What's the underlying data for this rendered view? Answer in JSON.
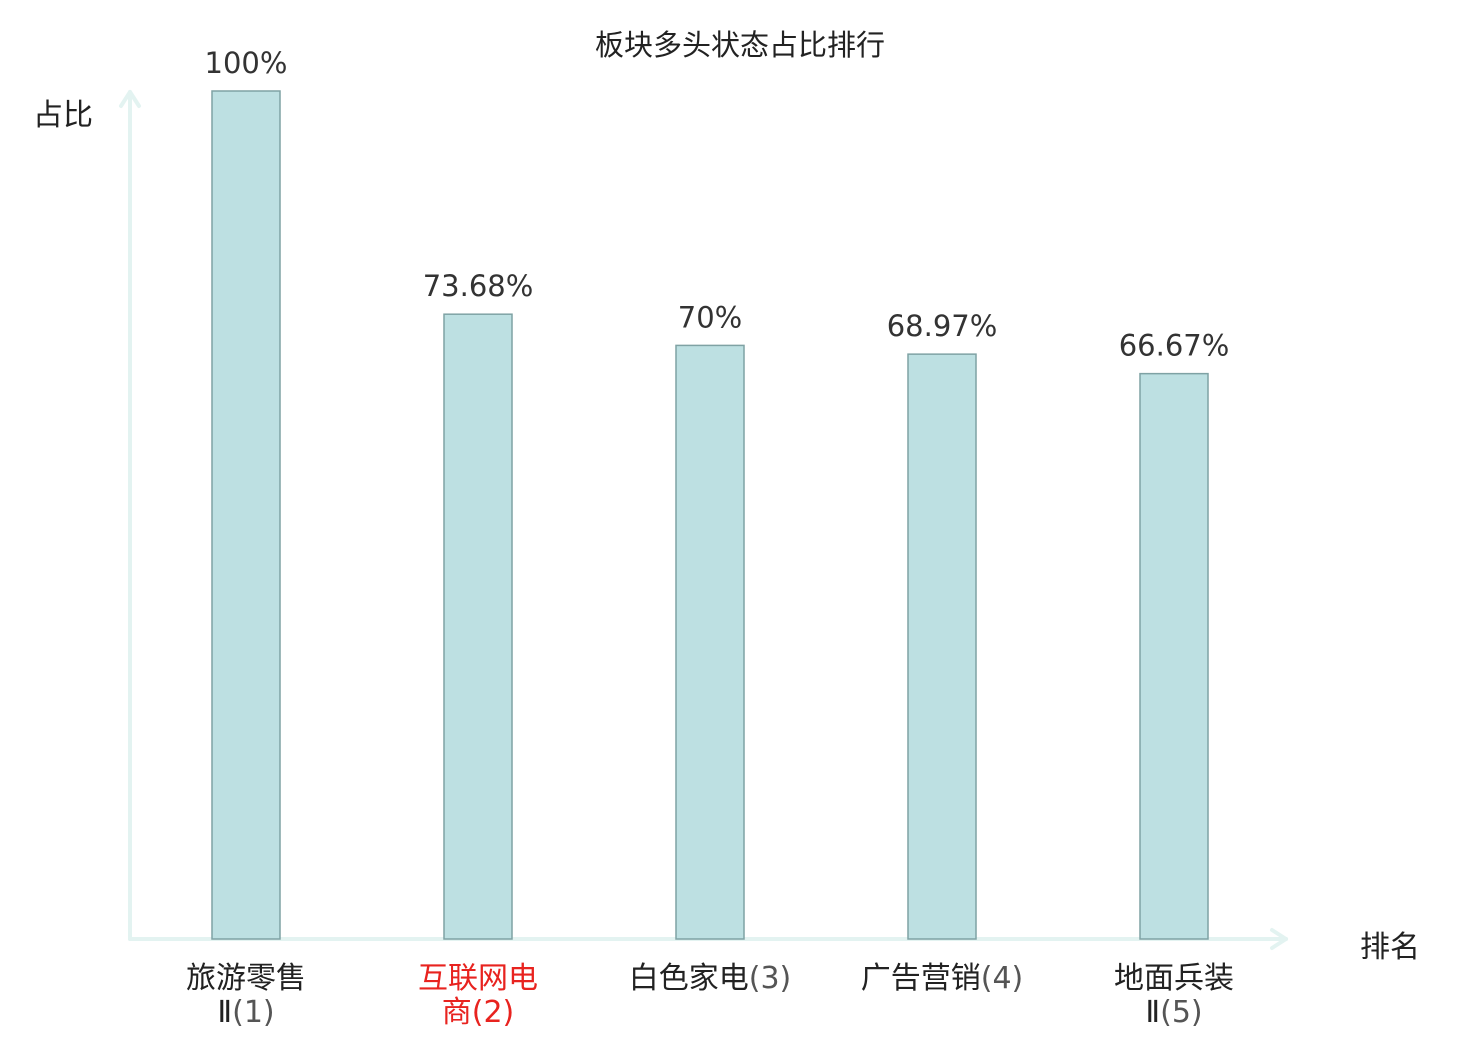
{
  "chart_data": {
    "type": "bar",
    "title": "板块多头状态占比排行",
    "ylabel": "占比",
    "xlabel": "排名",
    "ylim": [
      0,
      100
    ],
    "categories": [
      {
        "name": "旅游零售",
        "line2": "Ⅱ",
        "rank": "(1)",
        "highlight": false
      },
      {
        "name": "互联网电",
        "line2": "商",
        "rank": "(2)",
        "highlight": true
      },
      {
        "name": "白色家电",
        "line2": "",
        "rank": "(3)",
        "highlight": false
      },
      {
        "name": "广告营销",
        "line2": "",
        "rank": "(4)",
        "highlight": false
      },
      {
        "name": "地面兵装",
        "line2": "Ⅱ",
        "rank": "(5)",
        "highlight": false
      }
    ],
    "values": [
      100,
      73.68,
      70,
      68.97,
      66.67
    ],
    "value_labels": [
      "100%",
      "73.68%",
      "70%",
      "68.97%",
      "66.67%"
    ],
    "grid": false,
    "colors": {
      "bar_fill": "#bde0e2",
      "bar_stroke": "#7fa2a4",
      "axis": "#e3f3f1",
      "highlight_text": "#e8231f"
    }
  }
}
